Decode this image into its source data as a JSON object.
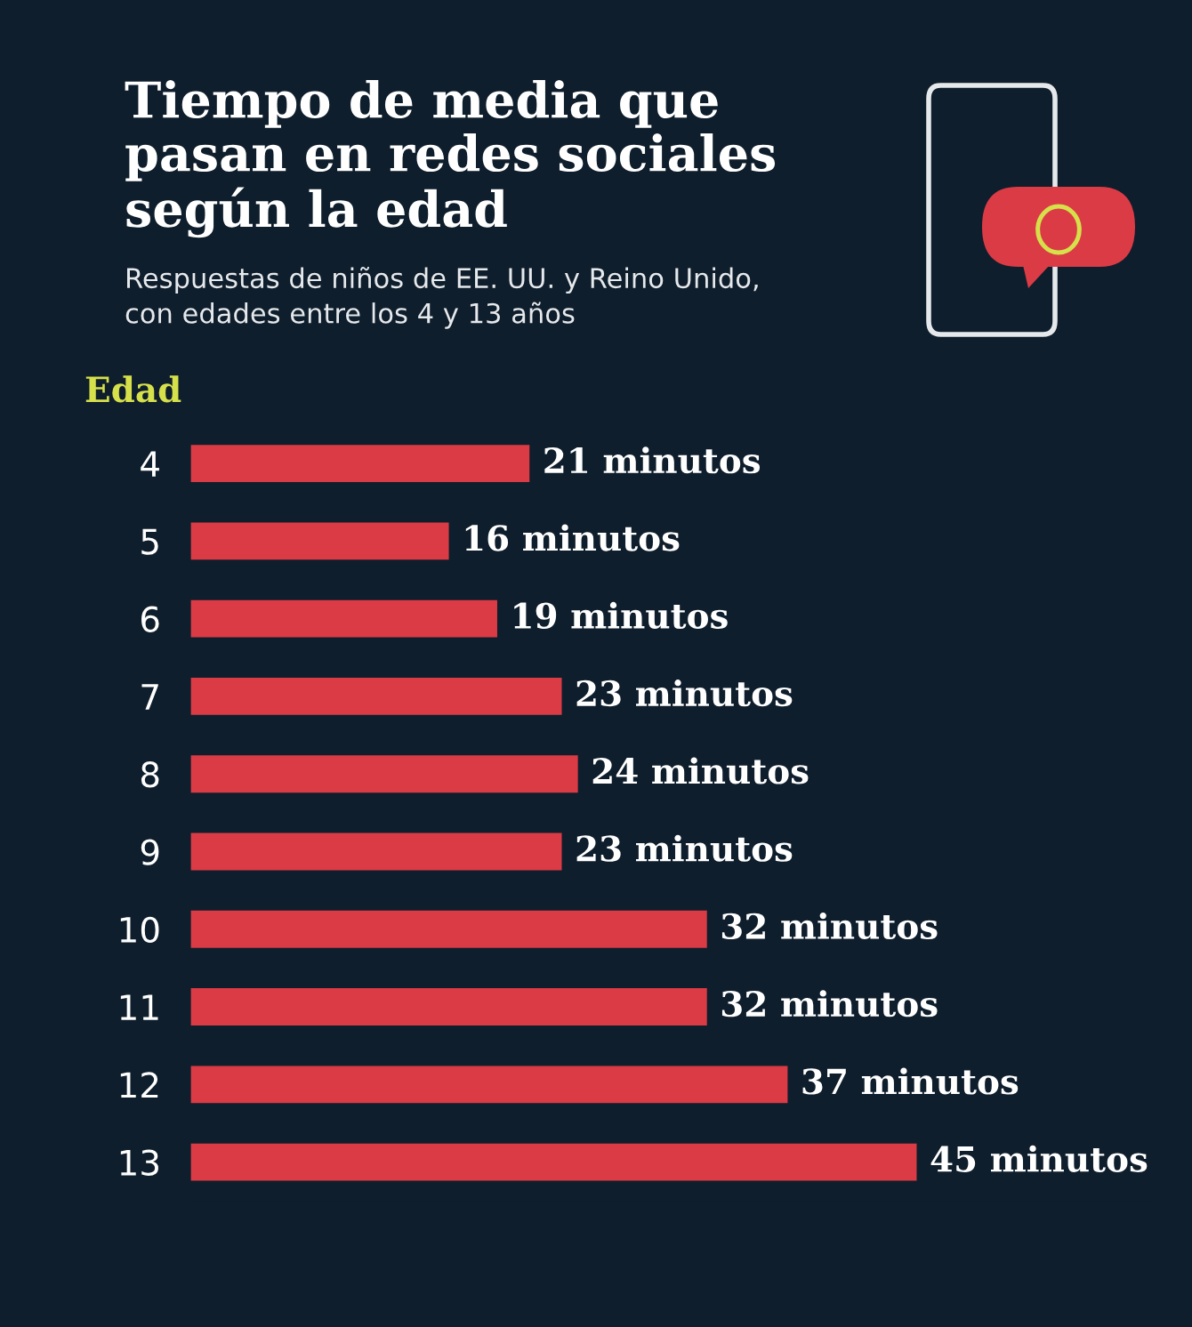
{
  "chart_data": {
    "type": "bar",
    "orientation": "horizontal",
    "title": "Tiempo de media que\npasan en redes sociales\nsegún la edad",
    "subtitle": "Respuestas de niños de EE. UU. y Reino Unido,\ncon edades entre los 4 y 13 años",
    "ylabel": "Edad",
    "categories": [
      "4",
      "5",
      "6",
      "7",
      "8",
      "9",
      "10",
      "11",
      "12",
      "13"
    ],
    "values": [
      21,
      16,
      19,
      23,
      24,
      23,
      32,
      32,
      37,
      45
    ],
    "value_labels": [
      "21 minutos",
      "16 minutos",
      "19 minutos",
      "23 minutos",
      "24 minutos",
      "23 minutos",
      "32 minutos",
      "32 minutos",
      "37 minutos",
      "45 minutos"
    ],
    "color": "#db3b45",
    "tick_labels": "y",
    "grid": false,
    "legend": false
  }
}
